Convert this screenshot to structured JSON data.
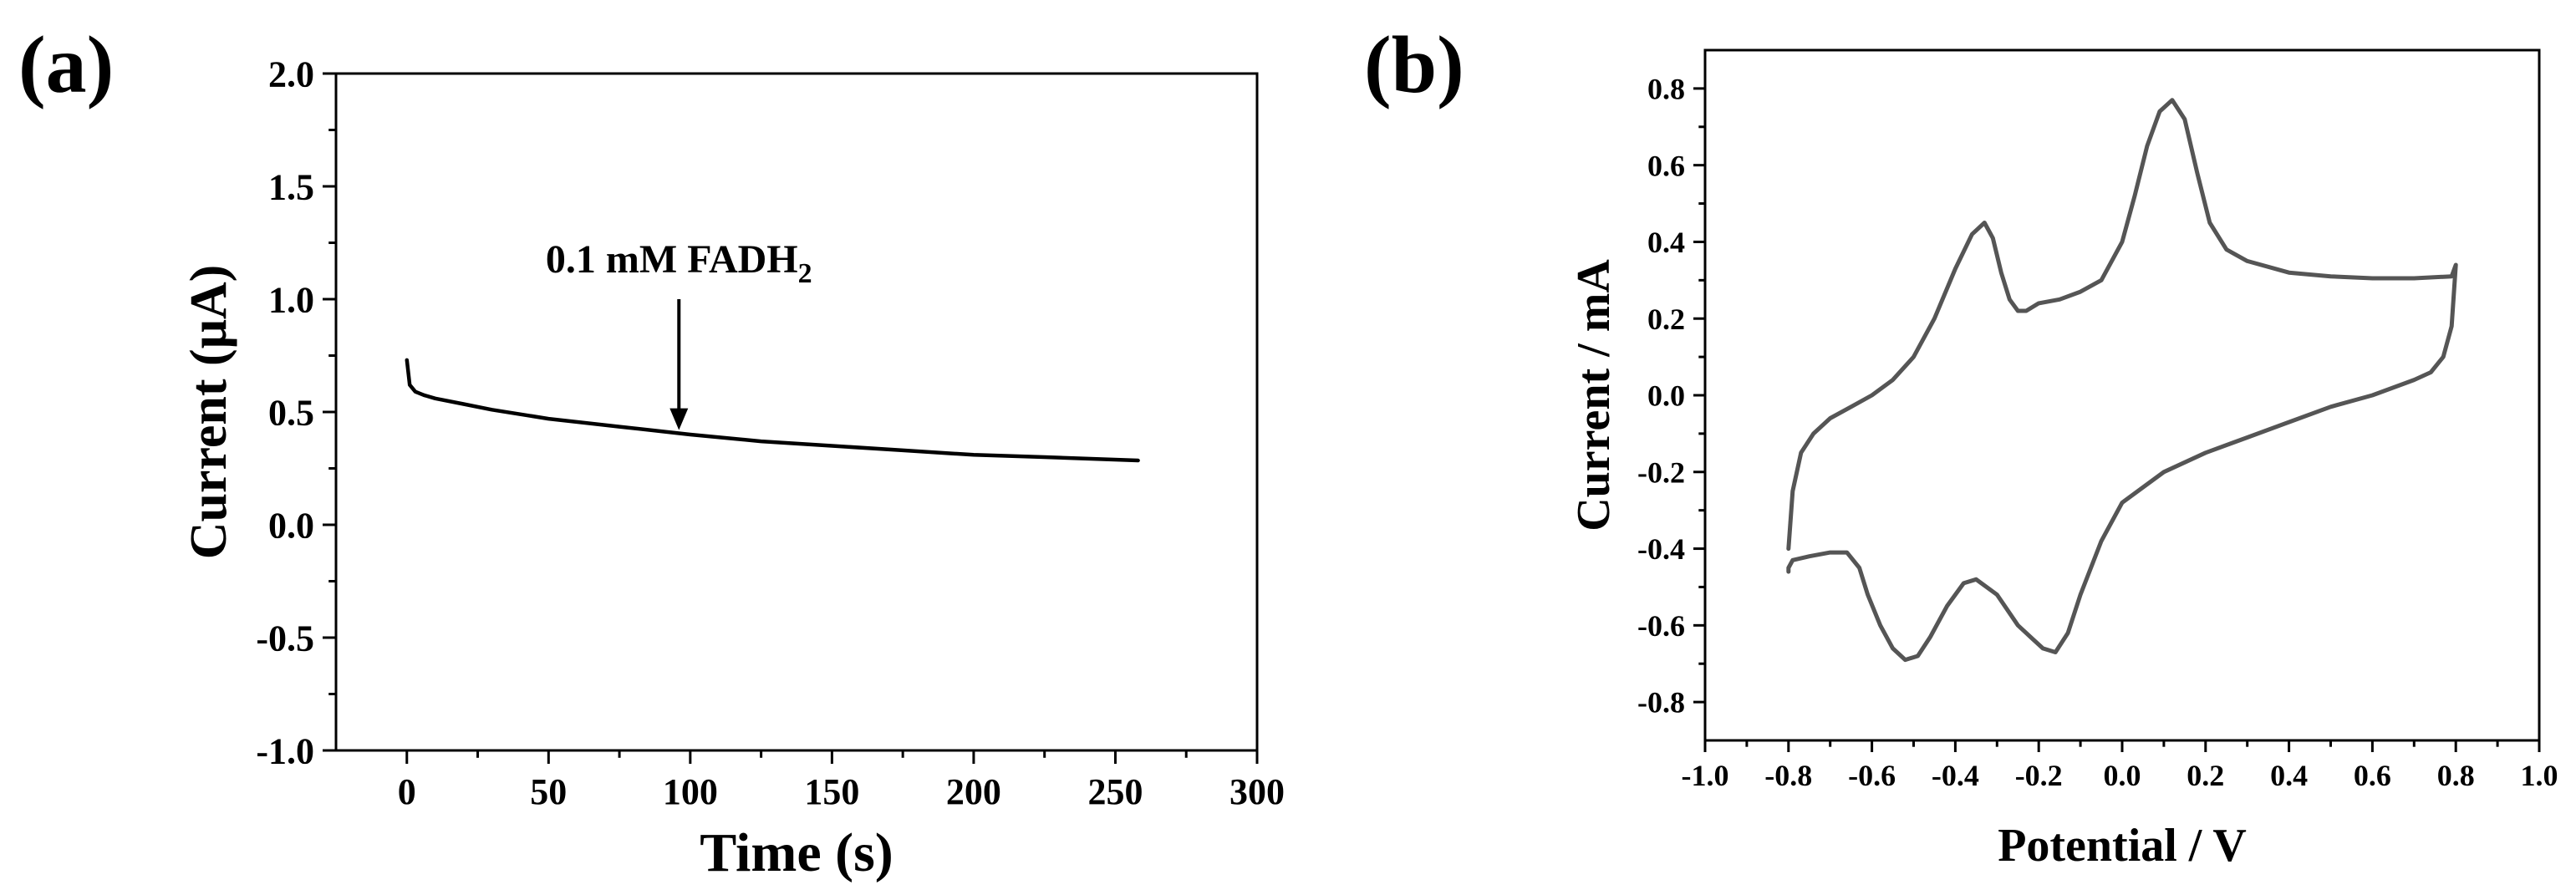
{
  "panels": [
    {
      "panel_label": "(a)",
      "annotation": {
        "text": "0.1 mM FADH",
        "subscript": "2",
        "x": 96,
        "y_tip": 0.42,
        "y_tail": 1.0
      },
      "chart_data": {
        "type": "line",
        "xlabel": "Time (s)",
        "ylabel": "Current (μA)",
        "xlim": [
          -25,
          300
        ],
        "ylim": [
          -1.0,
          2.0
        ],
        "xticks": [
          0,
          50,
          100,
          150,
          200,
          250,
          300
        ],
        "yticks": [
          -1.0,
          -0.5,
          0.0,
          0.5,
          1.0,
          1.5,
          2.0
        ],
        "grid": false,
        "series": [
          {
            "color": "#000000",
            "x": [
              0,
              1,
              3,
              6,
              10,
              20,
              30,
              50,
              75,
              100,
              125,
              150,
              175,
              200,
              225,
              258
            ],
            "y": [
              0.73,
              0.62,
              0.59,
              0.575,
              0.56,
              0.535,
              0.51,
              0.47,
              0.435,
              0.4,
              0.37,
              0.35,
              0.33,
              0.31,
              0.3,
              0.285
            ]
          }
        ]
      }
    },
    {
      "panel_label": "(b)",
      "chart_data": {
        "type": "line",
        "xlabel": "Potential / V",
        "ylabel": "Current / mA",
        "xlim": [
          -1.0,
          1.0
        ],
        "ylim": [
          -0.9,
          0.9
        ],
        "xticks": [
          -1.0,
          -0.8,
          -0.6,
          -0.4,
          -0.2,
          0.0,
          0.2,
          0.4,
          0.6,
          0.8,
          1.0
        ],
        "yticks": [
          -0.8,
          -0.6,
          -0.4,
          -0.2,
          0.0,
          0.2,
          0.4,
          0.6,
          0.8
        ],
        "grid": false,
        "series": [
          {
            "color": "#555555",
            "x": [
              -0.8,
              -0.79,
              -0.77,
              -0.74,
              -0.7,
              -0.65,
              -0.6,
              -0.55,
              -0.5,
              -0.45,
              -0.4,
              -0.36,
              -0.33,
              -0.31,
              -0.29,
              -0.27,
              -0.25,
              -0.23,
              -0.2,
              -0.15,
              -0.1,
              -0.05,
              0.0,
              0.03,
              0.06,
              0.09,
              0.12,
              0.15,
              0.18,
              0.21,
              0.25,
              0.3,
              0.4,
              0.5,
              0.6,
              0.7,
              0.79,
              0.8,
              0.79,
              0.77,
              0.74,
              0.7,
              0.6,
              0.5,
              0.4,
              0.3,
              0.2,
              0.1,
              0.0,
              -0.05,
              -0.1,
              -0.13,
              -0.16,
              -0.19,
              -0.22,
              -0.25,
              -0.3,
              -0.35,
              -0.38,
              -0.42,
              -0.46,
              -0.49,
              -0.52,
              -0.55,
              -0.58,
              -0.61,
              -0.63,
              -0.66,
              -0.7,
              -0.75,
              -0.79,
              -0.8,
              -0.8
            ],
            "y": [
              -0.4,
              -0.25,
              -0.15,
              -0.1,
              -0.06,
              -0.03,
              0.0,
              0.04,
              0.1,
              0.2,
              0.33,
              0.42,
              0.45,
              0.41,
              0.32,
              0.25,
              0.22,
              0.22,
              0.24,
              0.25,
              0.27,
              0.3,
              0.4,
              0.52,
              0.65,
              0.74,
              0.77,
              0.72,
              0.58,
              0.45,
              0.38,
              0.35,
              0.32,
              0.31,
              0.305,
              0.305,
              0.31,
              0.34,
              0.18,
              0.1,
              0.06,
              0.04,
              0.0,
              -0.03,
              -0.07,
              -0.11,
              -0.15,
              -0.2,
              -0.28,
              -0.38,
              -0.52,
              -0.62,
              -0.67,
              -0.66,
              -0.63,
              -0.6,
              -0.52,
              -0.48,
              -0.49,
              -0.55,
              -0.63,
              -0.68,
              -0.69,
              -0.66,
              -0.6,
              -0.52,
              -0.45,
              -0.41,
              -0.41,
              -0.42,
              -0.43,
              -0.45,
              -0.46
            ]
          }
        ]
      }
    }
  ]
}
